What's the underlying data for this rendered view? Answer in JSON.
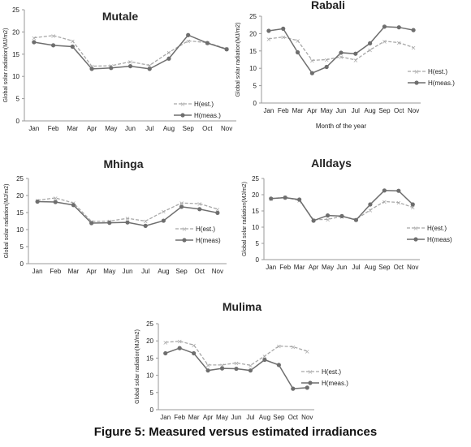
{
  "caption": "Figure 5: Measured versus estimated irradiances",
  "colors": {
    "est_line": "#a8a8a8",
    "meas_line": "#6e6e6e",
    "axis": "#9a9a9a",
    "text": "#222222"
  },
  "chart_data": [
    {
      "type": "line",
      "title": "Mutale",
      "ylabel": "Global solar radiation(MJ/m2)",
      "xlabel": "",
      "categories": [
        "Jan",
        "Feb",
        "Mar",
        "Apr",
        "May",
        "Jun",
        "Jul",
        "Aug",
        "Sep",
        "Oct",
        "Nov"
      ],
      "ylim": [
        0,
        25
      ],
      "yticks": [
        0,
        5,
        10,
        15,
        20,
        25
      ],
      "legend": "right",
      "series": [
        {
          "name": "H(est.)",
          "style": "dashed",
          "values": [
            18.7,
            19.2,
            18.0,
            12.3,
            12.4,
            13.3,
            12.5,
            15.4,
            18.0,
            17.6,
            16.2
          ]
        },
        {
          "name": "H(meas.)",
          "style": "solid",
          "values": [
            17.7,
            17.0,
            16.7,
            11.7,
            11.9,
            12.3,
            11.7,
            14.0,
            19.3,
            17.5,
            16.1
          ]
        }
      ]
    },
    {
      "type": "line",
      "title": "Rabali",
      "ylabel": "Global solar radiation(MJ/m2)",
      "xlabel": "Month of the year",
      "categories": [
        "Jan",
        "Feb",
        "Mar",
        "Apr",
        "May",
        "Jun",
        "Jul",
        "Aug",
        "Sep",
        "Oct",
        "Nov"
      ],
      "ylim": [
        0,
        25
      ],
      "yticks": [
        0,
        5,
        10,
        15,
        20,
        25
      ],
      "legend": "right",
      "series": [
        {
          "name": "H(est.)",
          "style": "dashed",
          "values": [
            18.5,
            19.0,
            18.0,
            12.3,
            12.5,
            13.3,
            12.4,
            15.3,
            17.8,
            17.4,
            16.0
          ]
        },
        {
          "name": "H(meas.)",
          "style": "solid",
          "values": [
            20.8,
            21.4,
            14.6,
            8.6,
            10.4,
            14.5,
            14.2,
            17.2,
            22.0,
            21.8,
            21.0
          ]
        }
      ]
    },
    {
      "type": "line",
      "title": "Mhinga",
      "ylabel": "Global solar radiation(MJ/m2)",
      "xlabel": "",
      "categories": [
        "Jan",
        "Feb",
        "Mar",
        "Apr",
        "May",
        "Jun",
        "Jul",
        "Aug",
        "Sep",
        "Oct",
        "Nov"
      ],
      "ylim": [
        0,
        25
      ],
      "yticks": [
        0,
        5,
        10,
        15,
        20,
        25
      ],
      "legend": "right",
      "series": [
        {
          "name": "H(est.)",
          "style": "dashed",
          "values": [
            18.6,
            19.3,
            17.8,
            12.4,
            12.5,
            13.3,
            12.5,
            15.3,
            17.8,
            17.6,
            16.0
          ]
        },
        {
          "name": "H(meas)",
          "style": "solid",
          "values": [
            18.2,
            18.1,
            17.2,
            11.9,
            12.0,
            12.1,
            11.1,
            12.6,
            16.7,
            16.0,
            14.9
          ]
        }
      ]
    },
    {
      "type": "line",
      "title": "Alldays",
      "ylabel": "Global solar radiation(MJ/m2)",
      "xlabel": "",
      "categories": [
        "Jan",
        "Feb",
        "Mar",
        "Apr",
        "May",
        "Jun",
        "Jul",
        "Aug",
        "Sep",
        "Oct",
        "Nov"
      ],
      "ylim": [
        0,
        25
      ],
      "yticks": [
        0,
        5,
        10,
        15,
        20,
        25
      ],
      "legend": "right",
      "series": [
        {
          "name": "H(est.)",
          "style": "dashed",
          "values": [
            18.8,
            19.2,
            18.2,
            12.3,
            12.4,
            13.3,
            12.4,
            15.3,
            17.9,
            17.6,
            16.1
          ]
        },
        {
          "name": "H(meas)",
          "style": "solid",
          "values": [
            18.8,
            19.1,
            18.5,
            12.0,
            13.6,
            13.4,
            12.2,
            17.0,
            21.3,
            21.2,
            17.0
          ]
        }
      ]
    },
    {
      "type": "line",
      "title": "Mulima",
      "ylabel": "Global solar radiation(MJ/m2)",
      "xlabel": "",
      "categories": [
        "Jan",
        "Feb",
        "Mar",
        "Apr",
        "May",
        "Jun",
        "Jul",
        "Aug",
        "Sep",
        "Oct",
        "Nov"
      ],
      "ylim": [
        0,
        25
      ],
      "yticks": [
        0,
        5,
        10,
        15,
        20,
        25
      ],
      "legend": "right",
      "series": [
        {
          "name": "H(est.)",
          "style": "dashed",
          "values": [
            19.6,
            19.9,
            18.8,
            13.0,
            13.0,
            13.6,
            12.9,
            15.6,
            18.5,
            18.3,
            17.0
          ]
        },
        {
          "name": "H(meas.)",
          "style": "solid",
          "values": [
            16.4,
            17.9,
            16.4,
            11.4,
            12.0,
            11.9,
            11.4,
            14.5,
            13.0,
            6.1,
            6.4
          ]
        }
      ]
    }
  ]
}
